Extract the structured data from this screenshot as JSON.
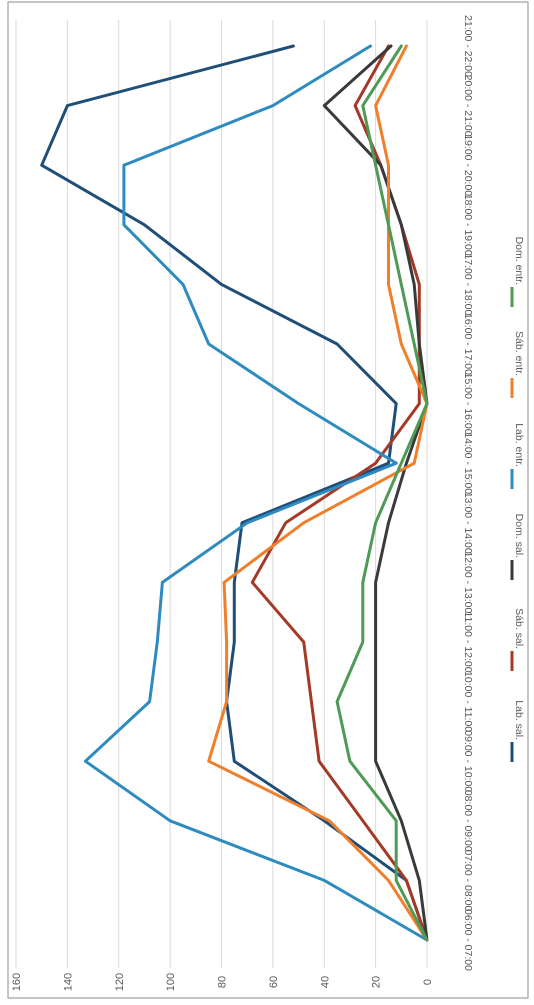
{
  "chart_data": {
    "type": "line",
    "orientation": "rotated-90-clockwise",
    "categories": [
      "06:00 - 07:00",
      "07:00 - 08:00",
      "08:00 - 09:00",
      "09:00 - 10:00",
      "10:00 - 11:00",
      "11:00 - 12:00",
      "12:00 - 13:00",
      "13:00 - 14:00",
      "14:00 - 15:00",
      "15:00 - 16:00",
      "16:00 - 17:00",
      "17:00 - 18:00",
      "18:00 - 19:00",
      "19:00 - 20:00",
      "20:00 - 21:00",
      "21:00 - 22:00"
    ],
    "ylim": [
      0,
      160
    ],
    "yticks": [
      "0",
      "20",
      "40",
      "60",
      "80",
      "100",
      "120",
      "140",
      "160"
    ],
    "grid": true,
    "legend_position": "bottom",
    "series": [
      {
        "name": "Lab. sal.",
        "color": "#1f4e79",
        "values": [
          0,
          8,
          40,
          75,
          78,
          75,
          75,
          72,
          15,
          12,
          35,
          80,
          110,
          150,
          140,
          52
        ]
      },
      {
        "name": "Sáb. sal.",
        "color": "#a33a27",
        "values": [
          0,
          8,
          25,
          42,
          45,
          48,
          68,
          55,
          20,
          3,
          3,
          3,
          10,
          18,
          28,
          15
        ]
      },
      {
        "name": "Dom. sal.",
        "color": "#3a3a3a",
        "values": [
          0,
          3,
          10,
          20,
          20,
          20,
          20,
          15,
          8,
          0,
          3,
          5,
          10,
          18,
          40,
          14
        ]
      },
      {
        "name": "Lab. entr.",
        "color": "#2e8bc0",
        "values": [
          0,
          40,
          100,
          133,
          108,
          105,
          103,
          70,
          12,
          50,
          85,
          95,
          118,
          118,
          60,
          22
        ]
      },
      {
        "name": "Sáb. entr.",
        "color": "#f07f2c",
        "values": [
          0,
          15,
          38,
          85,
          78,
          78,
          79,
          48,
          5,
          0,
          10,
          15,
          15,
          15,
          20,
          8
        ]
      },
      {
        "name": "Dom. entr.",
        "color": "#4e9a56",
        "values": [
          0,
          12,
          12,
          30,
          35,
          25,
          25,
          20,
          10,
          0,
          5,
          10,
          15,
          20,
          25,
          10
        ]
      }
    ]
  }
}
